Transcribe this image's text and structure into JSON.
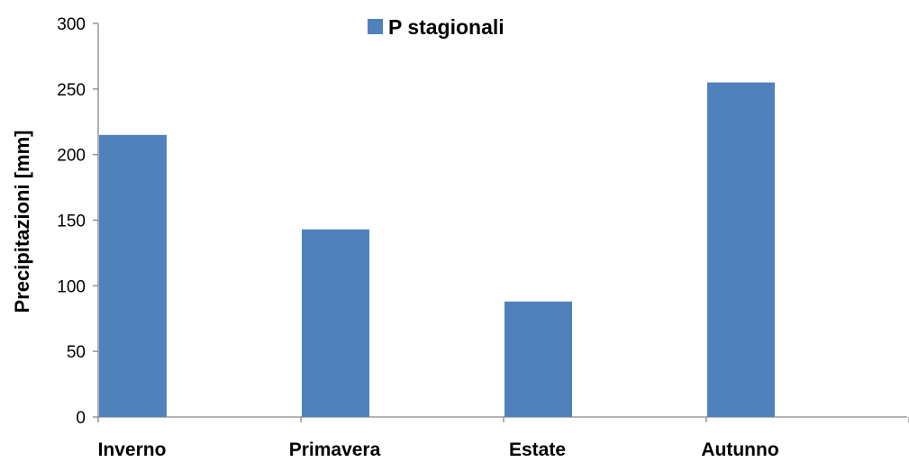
{
  "chart_data": {
    "type": "bar",
    "categories": [
      "Inverno",
      "Primavera",
      "Estate",
      "Autunno"
    ],
    "series": [
      {
        "name": "P stagionali",
        "values": [
          215,
          143,
          88,
          255
        ],
        "color": "#4F81BD"
      }
    ],
    "title": "",
    "xlabel": "",
    "ylabel": "Precipitazioni [mm]",
    "ylim": [
      0,
      300
    ],
    "yticks": [
      "0",
      "50",
      "100",
      "150",
      "200",
      "250",
      "300"
    ],
    "grid": false,
    "legend": "top-center"
  }
}
